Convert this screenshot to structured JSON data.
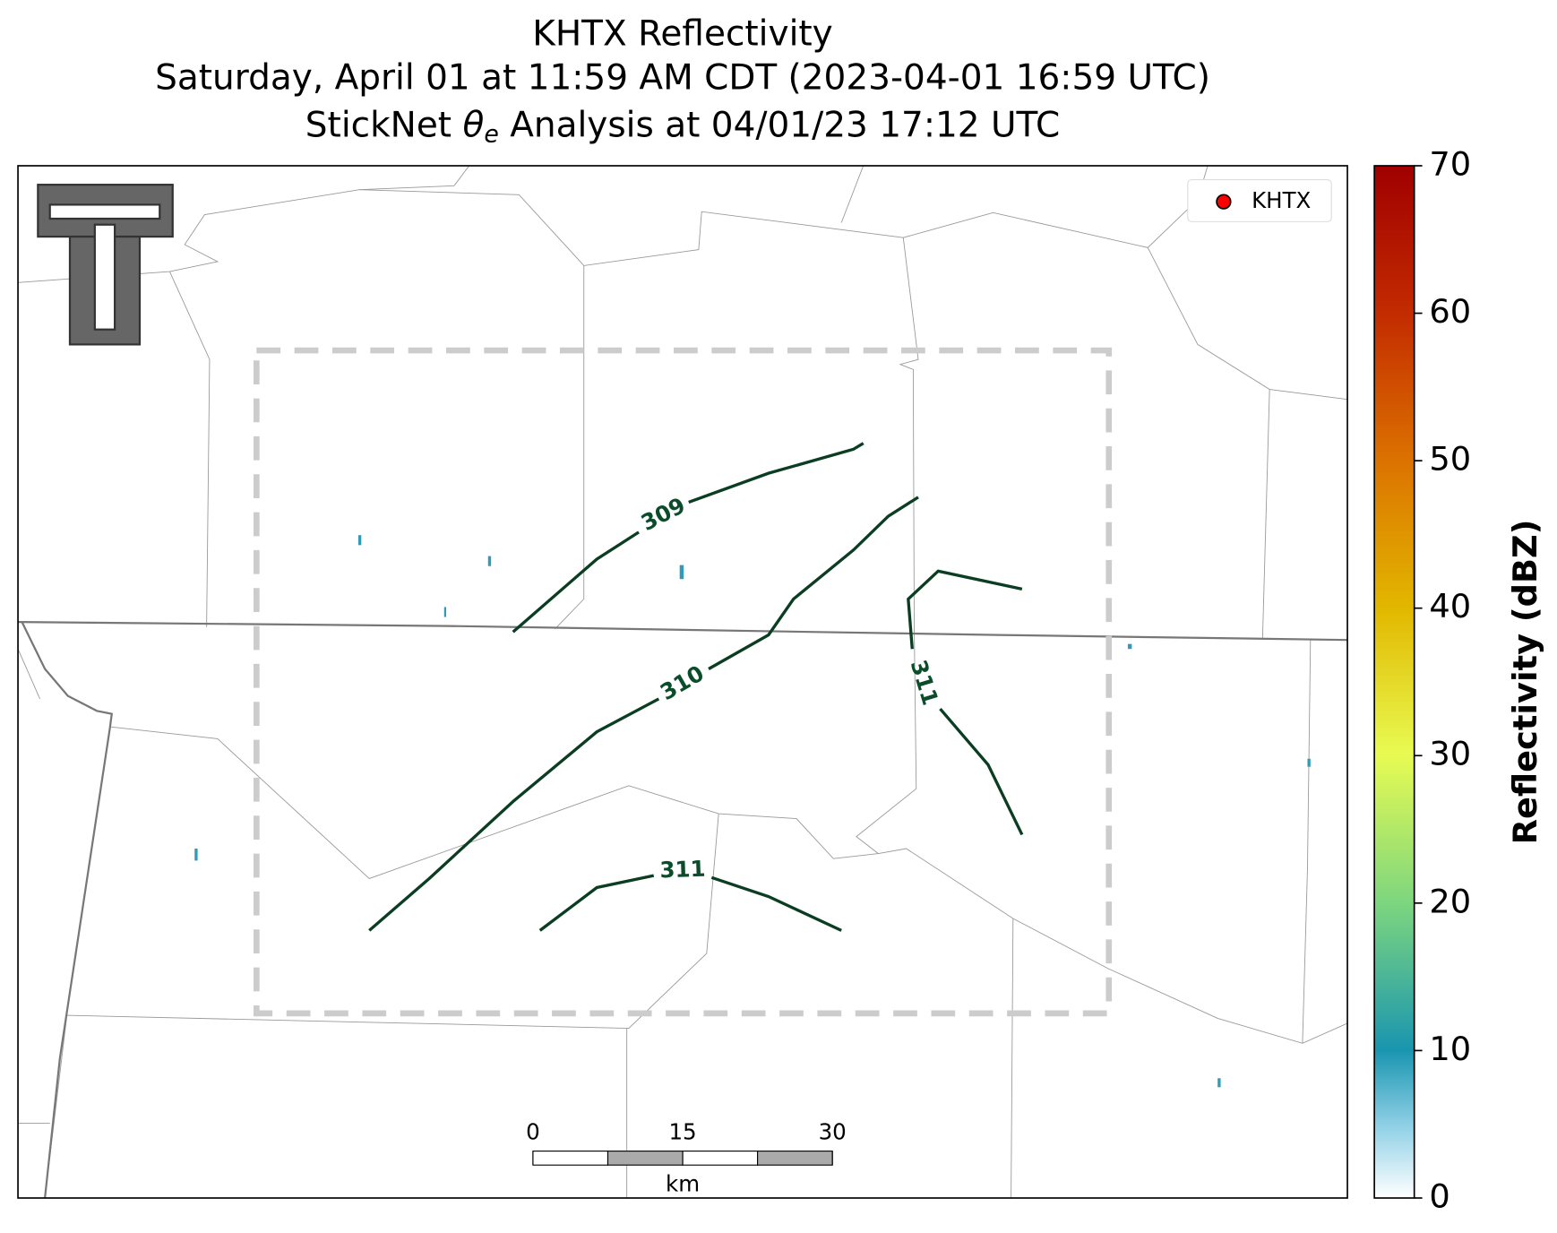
{
  "title": {
    "line1": "KHTX Reflectivity",
    "line2": "Saturday, April 01 at 11:59 AM CDT (2023-04-01 16:59 UTC)",
    "line3_pre": "StickNet ",
    "line3_theta": "θ",
    "line3_sub": "e",
    "line3_post": " Analysis at 04/01/23 17:12 UTC"
  },
  "legend": {
    "label": "KHTX",
    "color": "#ff0000"
  },
  "contours": [
    {
      "level": 309
    },
    {
      "level": 310
    },
    {
      "level": 311
    },
    {
      "level": 311
    }
  ],
  "colorbar": {
    "label": "Reflectivity (dBZ)",
    "lim": [
      0,
      70
    ],
    "ticks": [
      0,
      10,
      20,
      30,
      40,
      50,
      60,
      70
    ]
  },
  "scalebar": {
    "ticks": [
      0,
      15,
      30
    ],
    "unit": "km"
  }
}
